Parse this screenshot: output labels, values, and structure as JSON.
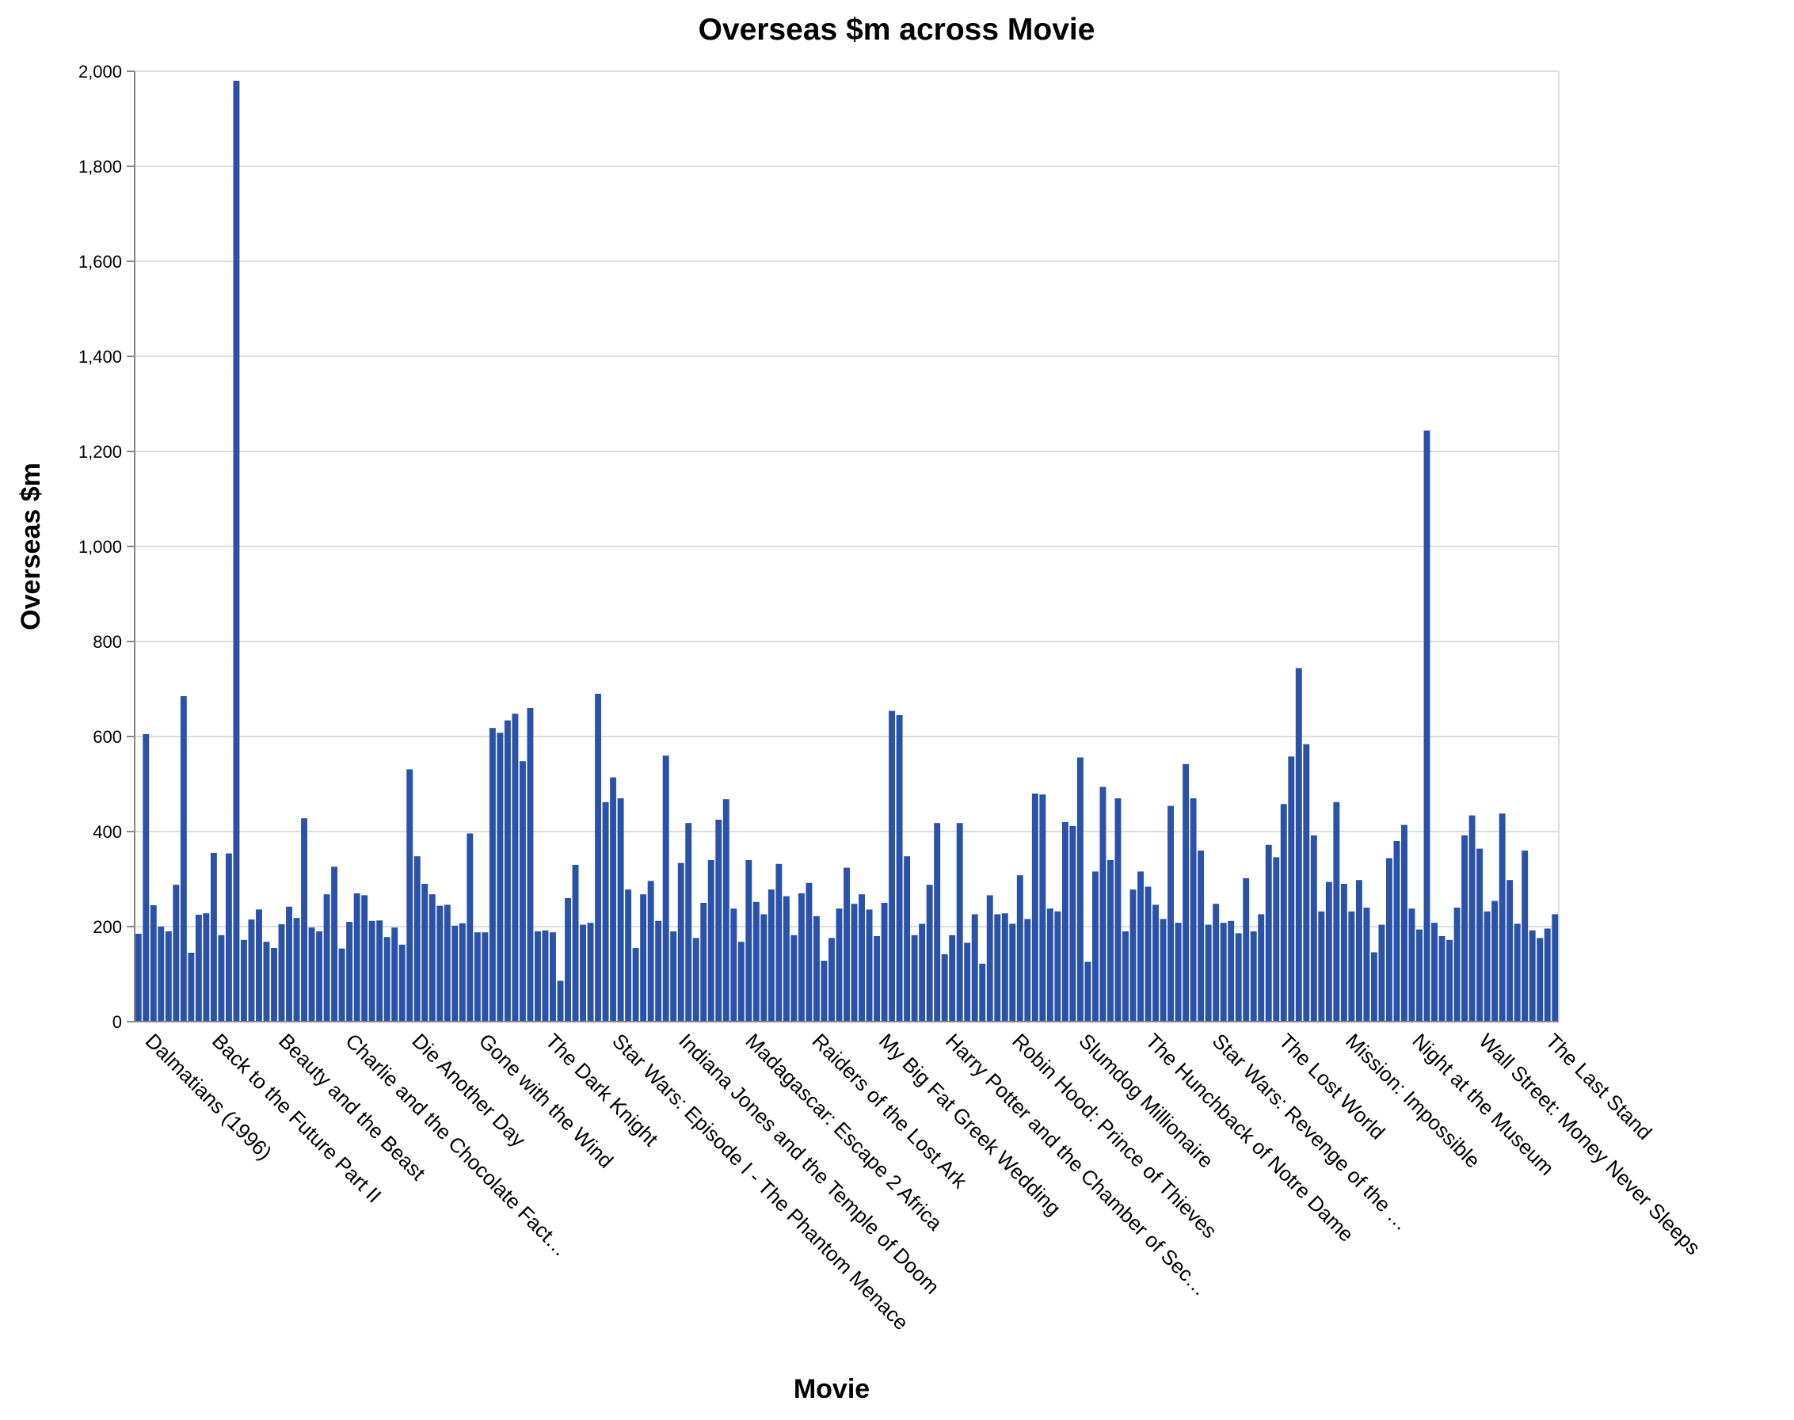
{
  "chart_data": {
    "type": "bar",
    "title": "Overseas $m across Movie",
    "xlabel": "Movie",
    "ylabel": "Overseas $m",
    "ylim": [
      0,
      2000
    ],
    "yticks": [
      0,
      200,
      400,
      600,
      800,
      1000,
      1200,
      1400,
      1600,
      1800,
      2000
    ],
    "grid": true,
    "bar_color": "#2a52a8",
    "x_tick_labels_visible": [
      "Dalmatians (1996)",
      "Back to the Future Part II",
      "Beauty and the Beast",
      "Charlie and the Chocolate Fact…",
      "Die Another Day",
      "Gone with the Wind",
      "The Dark Knight",
      "Star Wars: Episode I - The Phantom Menace",
      "Indiana Jones and the Temple of Doom",
      "Madagascar: Escape 2 Africa",
      "Raiders of the Lost Ark",
      "My Big Fat Greek Wedding",
      "Harry Potter and the Chamber of Sec…",
      "Robin Hood: Prince of Thieves",
      "Slumdog Millionaire",
      "The Hunchback of Notre Dame",
      "Star Wars: Revenge of the …",
      "The Lost World",
      "Mission: Impossible",
      "Night at the Museum",
      "Wall Street: Money Never Sleeps",
      "The Last Stand"
    ],
    "values": [
      185,
      605,
      245,
      200,
      190,
      288,
      685,
      145,
      225,
      228,
      355,
      182,
      354,
      1980,
      172,
      215,
      236,
      168,
      155,
      205,
      242,
      218,
      428,
      198,
      190,
      268,
      326,
      154,
      210,
      270,
      266,
      212,
      213,
      178,
      198,
      162,
      531,
      348,
      290,
      268,
      244,
      246,
      202,
      207,
      396,
      188,
      188,
      618,
      608,
      634,
      648,
      548,
      660,
      190,
      192,
      188,
      86,
      260,
      330,
      204,
      208,
      690,
      462,
      514,
      470,
      278,
      155,
      268,
      296,
      212,
      560,
      190,
      334,
      418,
      176,
      250,
      340,
      425,
      468,
      238,
      168,
      340,
      252,
      226,
      278,
      332,
      264,
      182,
      270,
      292,
      222,
      128,
      176,
      238,
      324,
      248,
      268,
      236,
      180,
      250,
      654,
      645,
      348,
      182,
      206,
      288,
      418,
      142,
      182,
      418,
      166,
      226,
      122,
      266,
      226,
      228,
      206,
      308,
      216,
      480,
      478,
      238,
      232,
      420,
      412,
      556,
      126,
      316,
      494,
      340,
      470,
      190,
      278,
      316,
      284,
      246,
      216,
      454,
      208,
      542,
      470,
      360,
      204,
      248,
      208,
      212,
      186,
      302,
      190,
      226,
      372,
      346,
      458,
      558,
      744,
      584,
      392,
      232,
      294,
      462,
      290,
      232,
      298,
      240,
      146,
      204,
      344,
      380,
      414,
      238,
      194,
      1244,
      208,
      180,
      172,
      240,
      392,
      434,
      364,
      232,
      254,
      438,
      298,
      206,
      360,
      192,
      176,
      196,
      226
    ]
  }
}
